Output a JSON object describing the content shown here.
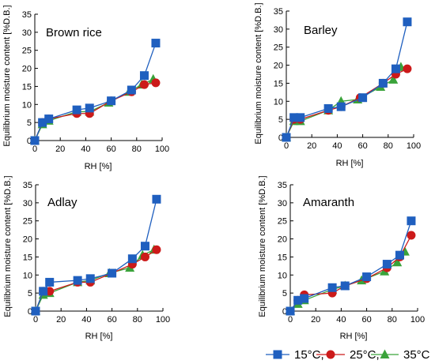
{
  "series_style": {
    "15C": {
      "color": "#1f5fbf",
      "marker": "square"
    },
    "25C": {
      "color": "#cc1a1a",
      "marker": "circle"
    },
    "35C": {
      "color": "#3aa33a",
      "marker": "triangle"
    }
  },
  "legend": {
    "placement": "bottom-right",
    "items": [
      {
        "key": "15C",
        "label": "15°C,"
      },
      {
        "key": "25C",
        "label": "25°C,"
      },
      {
        "key": "35C",
        "label": "35°C"
      }
    ]
  },
  "chart_data": [
    {
      "type": "line",
      "title": "Brown rice",
      "xlabel": "RH [%]",
      "ylabel": "Equilibrium moisture content [%D.B.]",
      "xlim": [
        0,
        100
      ],
      "ylim": [
        0,
        35
      ],
      "xticks": [
        0,
        20,
        40,
        60,
        80,
        100
      ],
      "yticks": [
        0,
        5,
        10,
        15,
        20,
        25,
        30,
        35
      ],
      "grid": false,
      "series": [
        {
          "key": "15C",
          "x": [
            0,
            6,
            11,
            33,
            43,
            60,
            76,
            86,
            95
          ],
          "y": [
            0,
            5,
            6,
            8.5,
            9,
            11,
            14,
            18,
            27
          ]
        },
        {
          "key": "25C",
          "x": [
            0,
            6,
            11,
            33,
            43,
            60,
            76,
            86,
            95
          ],
          "y": [
            0,
            5,
            6,
            7.5,
            7.5,
            11,
            13.5,
            15.5,
            16
          ]
        },
        {
          "key": "35C",
          "x": [
            0,
            6,
            11,
            33,
            43,
            58,
            74,
            84,
            93
          ],
          "y": [
            0,
            4.5,
            5.5,
            8,
            8,
            10.5,
            13.5,
            15.5,
            17
          ]
        }
      ]
    },
    {
      "type": "line",
      "title": "Barley",
      "xlabel": "RH [%]",
      "ylabel": "Equilibrium moisture content [%D.B.]",
      "xlim": [
        0,
        100
      ],
      "ylim": [
        0,
        35
      ],
      "xticks": [
        0,
        20,
        40,
        60,
        80,
        100
      ],
      "yticks": [
        0,
        5,
        10,
        15,
        20,
        25,
        30,
        35
      ],
      "grid": false,
      "series": [
        {
          "key": "15C",
          "x": [
            0,
            6,
            11,
            33,
            43,
            60,
            76,
            86,
            95
          ],
          "y": [
            0,
            5.5,
            5.5,
            8,
            8.5,
            11,
            15,
            19,
            32
          ]
        },
        {
          "key": "25C",
          "x": [
            0,
            6,
            11,
            33,
            43,
            58,
            76,
            86,
            95
          ],
          "y": [
            0,
            5,
            5,
            7.5,
            8.5,
            11,
            15,
            17.5,
            19
          ]
        },
        {
          "key": "35C",
          "x": [
            0,
            6,
            11,
            33,
            43,
            56,
            74,
            84,
            90
          ],
          "y": [
            0,
            4.5,
            4.5,
            7.5,
            10,
            10.5,
            14,
            16,
            19.5
          ]
        }
      ]
    },
    {
      "type": "line",
      "title": "Adlay",
      "xlabel": "RH [%]",
      "ylabel": "Equilibrium moisture content [%D.B.]",
      "xlim": [
        0,
        100
      ],
      "ylim": [
        0,
        35
      ],
      "xticks": [
        0,
        20,
        40,
        60,
        80,
        100
      ],
      "yticks": [
        0,
        5,
        10,
        15,
        20,
        25,
        30,
        35
      ],
      "grid": false,
      "series": [
        {
          "key": "15C",
          "x": [
            0,
            6,
            11,
            33,
            43,
            60,
            76,
            86,
            95
          ],
          "y": [
            0,
            5.5,
            8,
            8.5,
            9,
            10.5,
            14.5,
            18,
            31
          ]
        },
        {
          "key": "25C",
          "x": [
            0,
            6,
            11,
            33,
            43,
            60,
            76,
            86,
            95
          ],
          "y": [
            0,
            5.5,
            5.5,
            8,
            8,
            10.5,
            13,
            15,
            17
          ]
        },
        {
          "key": "35C",
          "x": [
            0,
            6,
            11,
            33,
            43,
            58,
            74,
            84,
            93
          ],
          "y": [
            0,
            4.5,
            5,
            8,
            8.5,
            10.5,
            12,
            15.5,
            17
          ]
        }
      ]
    },
    {
      "type": "line",
      "title": "Amaranth",
      "xlabel": "RH [%]",
      "ylabel": "Equilibrium moisture content [%D.B.]",
      "xlim": [
        0,
        100
      ],
      "ylim": [
        0,
        35
      ],
      "xticks": [
        0,
        20,
        40,
        60,
        80,
        100
      ],
      "yticks": [
        0,
        5,
        10,
        15,
        20,
        25,
        30,
        35
      ],
      "grid": false,
      "series": [
        {
          "key": "15C",
          "x": [
            0,
            6,
            11,
            33,
            43,
            60,
            76,
            86,
            95
          ],
          "y": [
            0,
            3,
            3.5,
            6.5,
            7,
            9.5,
            13,
            15.5,
            25
          ]
        },
        {
          "key": "25C",
          "x": [
            0,
            6,
            11,
            33,
            43,
            60,
            76,
            86,
            95
          ],
          "y": [
            0,
            3,
            4.5,
            5,
            7,
            9,
            12,
            15,
            21
          ]
        },
        {
          "key": "35C",
          "x": [
            0,
            6,
            11,
            33,
            43,
            56,
            74,
            84,
            90
          ],
          "y": [
            0,
            2,
            3,
            6,
            7,
            8.5,
            11,
            13.5,
            16.5
          ]
        }
      ]
    }
  ]
}
